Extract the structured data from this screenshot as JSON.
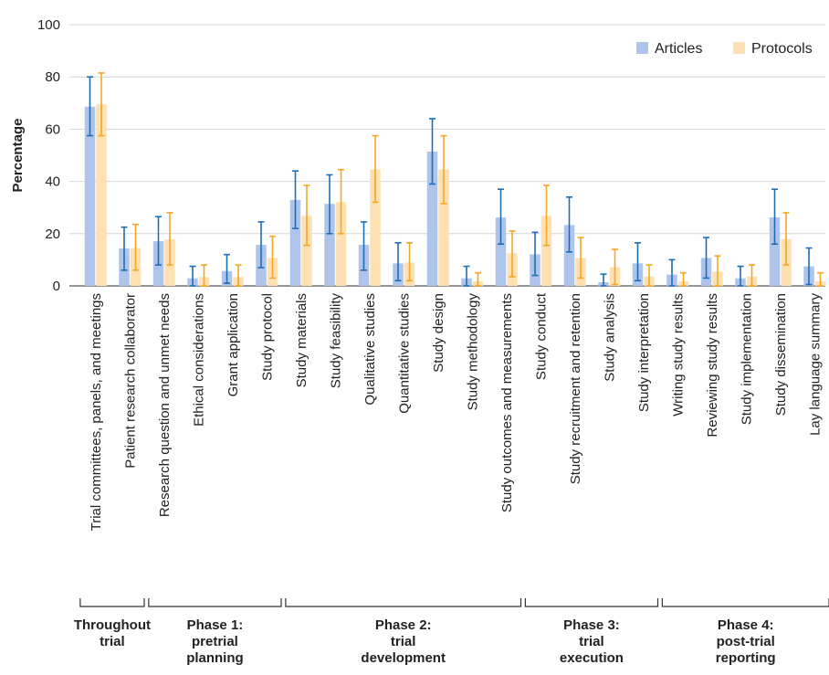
{
  "chart_data": {
    "type": "bar",
    "title": "",
    "xlabel": "",
    "ylabel": "Percentage",
    "ylim": [
      0,
      100
    ],
    "yticks": [
      0,
      20,
      40,
      60,
      80,
      100
    ],
    "grid": "horizontal",
    "legend_position": "top-right",
    "categories": [
      "Trial committees, panels, and meetings",
      "Patient research collaborator",
      "Research question and unmet needs",
      "Ethical considerations",
      "Grant application",
      "Study protocol",
      "Study materials",
      "Study feasibility",
      "Qualitative studies",
      "Quantitative studies",
      "Study design",
      "Study methodology",
      "Study outcomes and measurements",
      "Study conduct",
      "Study recruitment and retention",
      "Study analysis",
      "Study interpretation",
      "Writing study results",
      "Reviewing study results",
      "Study implementation",
      "Study dissemination",
      "Lay language summary"
    ],
    "series": [
      {
        "name": "Articles",
        "color": "#aec4ea",
        "error_color": "#1f6db5",
        "values": [
          68.6,
          14.3,
          17.1,
          2.9,
          5.7,
          15.7,
          32.9,
          31.4,
          15.7,
          8.6,
          51.4,
          2.9,
          26.2,
          12.1,
          23.3,
          1.4,
          8.6,
          4.3,
          10.7,
          2.9,
          26.2,
          7.5
        ],
        "lower": [
          57.5,
          6.0,
          8.0,
          0.0,
          1.0,
          7.0,
          22.0,
          20.0,
          6.0,
          2.0,
          39.0,
          0.0,
          16.0,
          4.0,
          13.0,
          0.0,
          2.0,
          0.0,
          3.0,
          0.0,
          16.0,
          0.5
        ],
        "upper": [
          80.0,
          22.5,
          26.5,
          7.5,
          12.0,
          24.5,
          44.0,
          42.5,
          24.5,
          16.5,
          64.0,
          7.5,
          37.0,
          20.5,
          34.0,
          4.5,
          16.5,
          10.0,
          18.5,
          7.5,
          37.0,
          14.5
        ]
      },
      {
        "name": "Protocols",
        "color": "#fde1b3",
        "error_color": "#f5a623",
        "values": [
          69.6,
          14.5,
          17.8,
          3.4,
          3.4,
          10.7,
          26.8,
          32.1,
          44.6,
          8.9,
          44.6,
          1.8,
          12.5,
          26.8,
          10.7,
          7.1,
          3.6,
          1.8,
          5.4,
          3.6,
          17.9,
          1.8
        ],
        "lower": [
          57.5,
          6.0,
          8.0,
          0.0,
          0.0,
          3.0,
          15.5,
          20.0,
          32.0,
          2.0,
          31.5,
          0.0,
          3.5,
          15.5,
          3.0,
          0.5,
          0.0,
          0.0,
          0.0,
          0.0,
          8.0,
          0.0
        ],
        "upper": [
          81.5,
          23.5,
          28.0,
          8.0,
          8.0,
          19.0,
          38.5,
          44.5,
          57.5,
          16.5,
          57.5,
          5.0,
          21.0,
          38.5,
          18.5,
          14.0,
          8.0,
          5.0,
          11.5,
          8.0,
          28.0,
          5.0
        ]
      }
    ],
    "phases": [
      {
        "label_lines": [
          "Throughout",
          "trial"
        ],
        "start": 0,
        "end": 1
      },
      {
        "label_lines": [
          "Phase 1:",
          "pretrial",
          "planning"
        ],
        "start": 2,
        "end": 5
      },
      {
        "label_lines": [
          "Phase 2:",
          "trial",
          "development"
        ],
        "start": 6,
        "end": 12
      },
      {
        "label_lines": [
          "Phase 3:",
          "trial",
          "execution"
        ],
        "start": 13,
        "end": 16
      },
      {
        "label_lines": [
          "Phase 4:",
          "post-trial",
          "reporting"
        ],
        "start": 17,
        "end": 21
      }
    ]
  }
}
